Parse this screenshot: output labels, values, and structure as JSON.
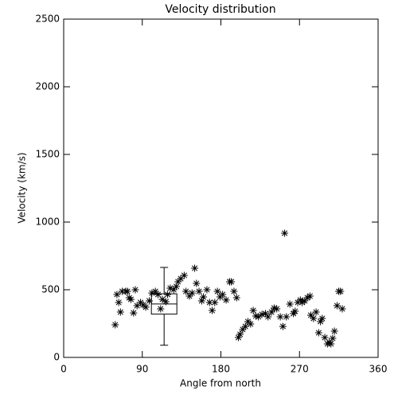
{
  "chart_data": {
    "type": "scatter",
    "title": "Velocity distribution",
    "x_label": "Angle from north",
    "y_label": "Velocity (km/s)",
    "xlim": [
      0,
      360
    ],
    "xticks": [
      0,
      90,
      180,
      270,
      360
    ],
    "ylim": [
      0,
      2500
    ],
    "yticks": [
      0,
      500,
      1000,
      1500,
      2000,
      2500
    ],
    "color": "#000000",
    "x": [
      59,
      61,
      63,
      65,
      67,
      71,
      73,
      75,
      77,
      80,
      82,
      84,
      88,
      91,
      94,
      98,
      101,
      105,
      108,
      111,
      113,
      117,
      119,
      122,
      126,
      129,
      131,
      134,
      138,
      140,
      144,
      147,
      150,
      152,
      155,
      158,
      160,
      164,
      167,
      170,
      173,
      176,
      179,
      182,
      186,
      190,
      192,
      195,
      198,
      200,
      202,
      205,
      208,
      211,
      214,
      217,
      220,
      223,
      227,
      231,
      234,
      238,
      241,
      244,
      248,
      251,
      253,
      255,
      259,
      263,
      265,
      268,
      271,
      273,
      276,
      279,
      282,
      283,
      286,
      289,
      292,
      294,
      296,
      299,
      302,
      304,
      306,
      308,
      310,
      313,
      315,
      317,
      319
    ],
    "y": [
      241,
      465,
      406,
      335,
      488,
      488,
      488,
      441,
      429,
      329,
      500,
      382,
      406,
      388,
      371,
      418,
      476,
      488,
      465,
      359,
      429,
      412,
      465,
      512,
      500,
      524,
      559,
      582,
      606,
      488,
      453,
      476,
      659,
      547,
      488,
      418,
      447,
      500,
      406,
      347,
      406,
      488,
      447,
      465,
      424,
      559,
      559,
      488,
      441,
      147,
      171,
      206,
      229,
      265,
      247,
      347,
      306,
      300,
      318,
      324,
      300,
      335,
      365,
      359,
      300,
      229,
      918,
      300,
      394,
      324,
      341,
      406,
      424,
      406,
      418,
      441,
      453,
      312,
      288,
      335,
      182,
      265,
      288,
      147,
      100,
      112,
      100,
      141,
      194,
      382,
      488,
      488,
      359
    ],
    "box": {
      "x": 115,
      "whislo": 90,
      "q1": 320,
      "med": 395,
      "q3": 470,
      "whishi": 665
    }
  }
}
